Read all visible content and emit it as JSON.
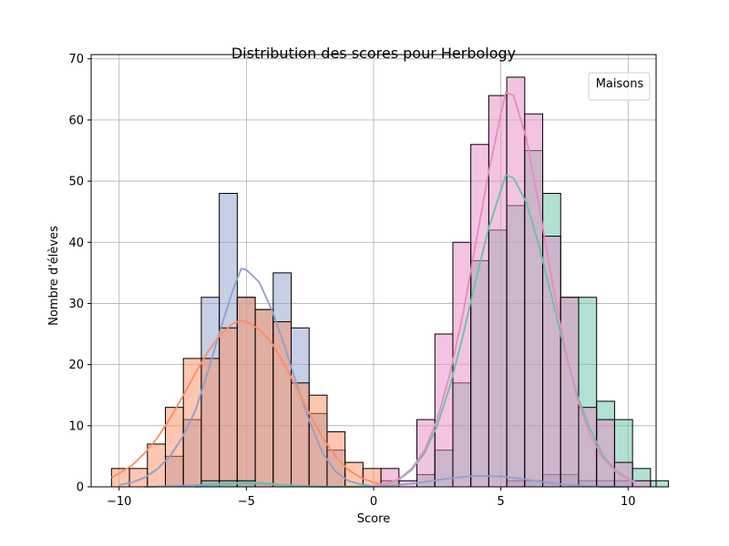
{
  "chart_data": {
    "type": "histogram",
    "title": "Distribution des scores pour Herbology",
    "xlabel": "Score",
    "ylabel": "Nombre d'élèves",
    "xlim": [
      -11.1,
      11.1
    ],
    "ylim": [
      0,
      70.7
    ],
    "xticks": [
      -10,
      -5,
      0,
      5,
      10
    ],
    "yticks": [
      0,
      10,
      20,
      30,
      40,
      50,
      60,
      70
    ],
    "grid": true,
    "legend": {
      "title": "Maisons",
      "placement": "top-right"
    },
    "bin_start": -10.3,
    "bin_width": 0.706,
    "series": [
      {
        "name": "",
        "color": "#8da0cb",
        "counts": [
          0,
          0,
          0,
          0,
          0,
          0,
          0,
          0,
          0,
          0,
          0,
          0,
          0,
          0,
          0,
          0,
          0,
          0,
          0,
          0,
          0,
          0,
          1,
          1,
          2,
          2,
          1,
          1,
          1,
          0,
          0,
          0,
          0,
          0,
          0,
          0
        ],
        "kde": [
          [
            -9,
            0
          ],
          [
            -8,
            0.1
          ],
          [
            -7,
            0.3
          ],
          [
            -6,
            0.5
          ],
          [
            -5,
            0.6
          ],
          [
            -4,
            0.4
          ],
          [
            -3,
            0.2
          ],
          [
            -2,
            0.05
          ],
          [
            -1,
            0
          ],
          [
            0,
            0.05
          ],
          [
            1,
            0.3
          ],
          [
            2,
            0.8
          ],
          [
            3,
            1.4
          ],
          [
            4,
            1.8
          ],
          [
            5,
            1.7
          ],
          [
            6,
            1.2
          ],
          [
            7,
            0.6
          ],
          [
            8,
            0.2
          ],
          [
            9,
            0
          ],
          [
            10,
            0
          ]
        ]
      },
      {
        "name": "",
        "color": "#8da0cb",
        "counts": [
          0,
          0,
          0,
          5,
          11,
          31,
          48,
          31,
          29,
          35,
          26,
          12,
          6,
          0,
          0,
          0,
          0,
          0,
          0,
          0,
          0,
          0,
          0,
          0,
          0,
          0,
          0,
          0,
          0,
          0,
          0,
          0,
          0,
          0,
          0,
          0
        ],
        "kde": [
          [
            -10,
            0.3
          ],
          [
            -9.5,
            0.7
          ],
          [
            -9,
            1.5
          ],
          [
            -8.5,
            2.9
          ],
          [
            -8,
            5
          ],
          [
            -7.5,
            8.2
          ],
          [
            -7,
            12.5
          ],
          [
            -6.5,
            19
          ],
          [
            -6,
            26
          ],
          [
            -5.5,
            32.5
          ],
          [
            -5.2,
            35.7
          ],
          [
            -5,
            35.5
          ],
          [
            -4.5,
            33.5
          ],
          [
            -4,
            29
          ],
          [
            -3.5,
            23
          ],
          [
            -3,
            16.5
          ],
          [
            -2.5,
            10.5
          ],
          [
            -2,
            5.5
          ],
          [
            -1.5,
            2.5
          ],
          [
            -1,
            1
          ],
          [
            -0.5,
            0.4
          ],
          [
            0,
            0.1
          ]
        ]
      },
      {
        "name": "",
        "color": "#fc8d62",
        "counts": [
          3,
          3,
          7,
          13,
          21,
          21,
          26,
          31,
          29,
          27,
          17,
          15,
          9,
          4,
          3,
          1,
          0,
          0,
          0,
          0,
          0,
          0,
          0,
          0,
          0,
          0,
          0,
          0,
          0,
          0,
          0,
          0,
          0,
          0,
          0,
          0
        ],
        "kde": [
          [
            -10.3,
            1.5
          ],
          [
            -10,
            2.2
          ],
          [
            -9.5,
            3.5
          ],
          [
            -9,
            5.5
          ],
          [
            -8.5,
            8
          ],
          [
            -8,
            11.2
          ],
          [
            -7.5,
            14.8
          ],
          [
            -7,
            18.6
          ],
          [
            -6.5,
            22.2
          ],
          [
            -6,
            25
          ],
          [
            -5.5,
            26.8
          ],
          [
            -5.2,
            27.2
          ],
          [
            -5,
            27
          ],
          [
            -4.5,
            25.8
          ],
          [
            -4,
            23.5
          ],
          [
            -3.5,
            20
          ],
          [
            -3,
            16
          ],
          [
            -2.5,
            11.8
          ],
          [
            -2,
            8
          ],
          [
            -1.5,
            5
          ],
          [
            -1,
            2.8
          ],
          [
            -0.5,
            1.5
          ],
          [
            0,
            0.7
          ],
          [
            0.5,
            0.3
          ]
        ]
      },
      {
        "name": "",
        "color": "#66c2a5",
        "counts": [
          0,
          0,
          0,
          0,
          0,
          1,
          1,
          1,
          0,
          0,
          0,
          0,
          0,
          0,
          0,
          0,
          0,
          2,
          6,
          17,
          37,
          42,
          46,
          55,
          48,
          31,
          31,
          14,
          11,
          3,
          1,
          0,
          0,
          0,
          0,
          0
        ],
        "kde": [
          [
            -7,
            0
          ],
          [
            -6,
            0.3
          ],
          [
            -5,
            0.8
          ],
          [
            -4,
            0.5
          ],
          [
            -3,
            0.1
          ],
          [
            -2,
            0
          ],
          [
            0,
            0.1
          ],
          [
            0.5,
            0.4
          ],
          [
            1,
            1.2
          ],
          [
            1.5,
            2.8
          ],
          [
            2,
            5.5
          ],
          [
            2.5,
            10
          ],
          [
            3,
            16.5
          ],
          [
            3.5,
            24.5
          ],
          [
            4,
            33.5
          ],
          [
            4.5,
            42
          ],
          [
            5,
            48.5
          ],
          [
            5.2,
            51
          ],
          [
            5.5,
            50.5
          ],
          [
            6,
            46.5
          ],
          [
            6.5,
            39.5
          ],
          [
            7,
            31
          ],
          [
            7.5,
            22.5
          ],
          [
            8,
            15
          ],
          [
            8.5,
            9.5
          ],
          [
            9,
            5.2
          ],
          [
            9.5,
            2.7
          ],
          [
            10,
            1.3
          ],
          [
            10.3,
            0.8
          ]
        ]
      },
      {
        "name": "",
        "color": "#e78ac3",
        "counts": [
          0,
          0,
          0,
          0,
          0,
          0,
          0,
          0,
          0,
          0,
          0,
          0,
          0,
          0,
          0,
          3,
          1,
          11,
          25,
          40,
          56,
          64,
          67,
          61,
          41,
          31,
          13,
          11,
          4,
          1,
          0,
          0,
          0,
          0,
          0,
          0
        ],
        "kde": [
          [
            0,
            0.2
          ],
          [
            0.5,
            0.5
          ],
          [
            1,
            1.3
          ],
          [
            1.5,
            3
          ],
          [
            2,
            6
          ],
          [
            2.5,
            11
          ],
          [
            3,
            18.5
          ],
          [
            3.5,
            28
          ],
          [
            4,
            39.5
          ],
          [
            4.5,
            51
          ],
          [
            5,
            61
          ],
          [
            5.2,
            64.5
          ],
          [
            5.5,
            64
          ],
          [
            6,
            57
          ],
          [
            6.5,
            46
          ],
          [
            7,
            34
          ],
          [
            7.5,
            23
          ],
          [
            8,
            14.5
          ],
          [
            8.5,
            8.5
          ],
          [
            9,
            4.8
          ],
          [
            9.5,
            2.5
          ],
          [
            10,
            1.2
          ],
          [
            10.3,
            0.6
          ]
        ]
      }
    ]
  }
}
